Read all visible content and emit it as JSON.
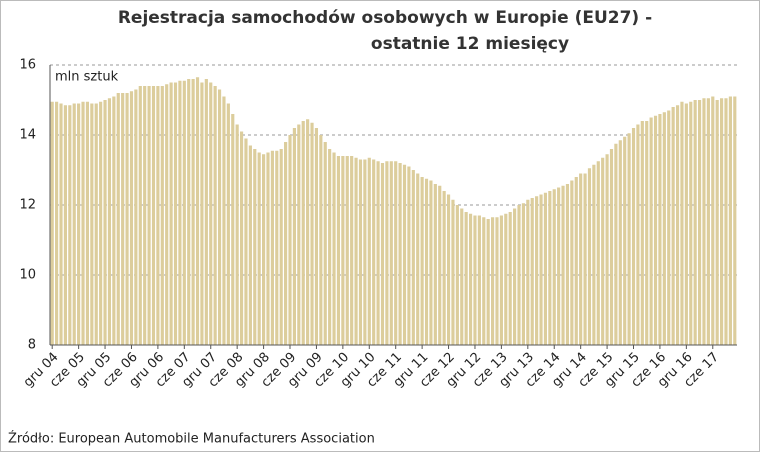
{
  "chart_data": {
    "type": "bar",
    "title": [
      "Rejestracja samochodów osobowych w Europie (EU27) -",
      "ostatnie 12 miesięcy"
    ],
    "y_label": "mln sztuk",
    "source": "Źródło: European Automobile Manufacturers Association",
    "color": "#dccd9c",
    "ylim": [
      8,
      16
    ],
    "yticks": [
      8,
      10,
      12,
      14,
      16
    ],
    "grid": true,
    "categories": [
      "gru 04",
      null,
      null,
      null,
      null,
      null,
      "cze 05",
      null,
      null,
      null,
      null,
      null,
      "gru 05",
      null,
      null,
      null,
      null,
      null,
      "cze 06",
      null,
      null,
      null,
      null,
      null,
      "gru 06",
      null,
      null,
      null,
      null,
      null,
      "cze 07",
      null,
      null,
      null,
      null,
      null,
      "gru 07",
      null,
      null,
      null,
      null,
      null,
      "cze 08",
      null,
      null,
      null,
      null,
      null,
      "gru 08",
      null,
      null,
      null,
      null,
      null,
      "cze 09",
      null,
      null,
      null,
      null,
      null,
      "gru 09",
      null,
      null,
      null,
      null,
      null,
      "cze 10",
      null,
      null,
      null,
      null,
      null,
      "gru 10",
      null,
      null,
      null,
      null,
      null,
      "cze 11",
      null,
      null,
      null,
      null,
      null,
      "gru 11",
      null,
      null,
      null,
      null,
      null,
      "cze 12",
      null,
      null,
      null,
      null,
      null,
      "gru 12",
      null,
      null,
      null,
      null,
      null,
      "cze 13",
      null,
      null,
      null,
      null,
      null,
      "gru 13",
      null,
      null,
      null,
      null,
      null,
      "cze 14",
      null,
      null,
      null,
      null,
      null,
      "gru 14",
      null,
      null,
      null,
      null,
      null,
      "cze 15",
      null,
      null,
      null,
      null,
      null,
      "gru 15",
      null,
      null,
      null,
      null,
      null,
      "cze 16",
      null,
      null,
      null,
      null,
      null,
      "gru 16",
      null,
      null,
      null,
      null,
      null,
      "cze 17",
      null,
      null,
      null,
      null,
      null
    ],
    "values": [
      14.95,
      14.95,
      14.9,
      14.85,
      14.85,
      14.9,
      14.9,
      14.95,
      14.95,
      14.9,
      14.9,
      14.95,
      15.0,
      15.05,
      15.1,
      15.2,
      15.2,
      15.2,
      15.25,
      15.3,
      15.4,
      15.4,
      15.4,
      15.4,
      15.4,
      15.4,
      15.45,
      15.5,
      15.5,
      15.55,
      15.55,
      15.6,
      15.6,
      15.65,
      15.5,
      15.6,
      15.5,
      15.4,
      15.3,
      15.1,
      14.9,
      14.6,
      14.3,
      14.1,
      13.9,
      13.7,
      13.6,
      13.5,
      13.45,
      13.5,
      13.55,
      13.55,
      13.6,
      13.8,
      14.0,
      14.2,
      14.3,
      14.4,
      14.45,
      14.35,
      14.2,
      14.0,
      13.8,
      13.6,
      13.5,
      13.4,
      13.4,
      13.4,
      13.4,
      13.35,
      13.3,
      13.3,
      13.35,
      13.3,
      13.25,
      13.2,
      13.25,
      13.25,
      13.25,
      13.2,
      13.15,
      13.1,
      13.0,
      12.9,
      12.8,
      12.75,
      12.7,
      12.6,
      12.55,
      12.4,
      12.3,
      12.15,
      12.0,
      11.9,
      11.8,
      11.75,
      11.7,
      11.7,
      11.65,
      11.6,
      11.65,
      11.65,
      11.7,
      11.75,
      11.8,
      11.9,
      12.0,
      12.05,
      12.15,
      12.2,
      12.25,
      12.3,
      12.35,
      12.4,
      12.45,
      12.5,
      12.55,
      12.6,
      12.7,
      12.8,
      12.9,
      12.9,
      13.05,
      13.15,
      13.25,
      13.35,
      13.45,
      13.6,
      13.75,
      13.85,
      13.95,
      14.05,
      14.2,
      14.3,
      14.4,
      14.4,
      14.5,
      14.55,
      14.6,
      14.65,
      14.7,
      14.8,
      14.85,
      14.95,
      14.9,
      14.95,
      15.0,
      15.0,
      15.05,
      15.05,
      15.1,
      15.0,
      15.05,
      15.05,
      15.1,
      15.1
    ]
  }
}
